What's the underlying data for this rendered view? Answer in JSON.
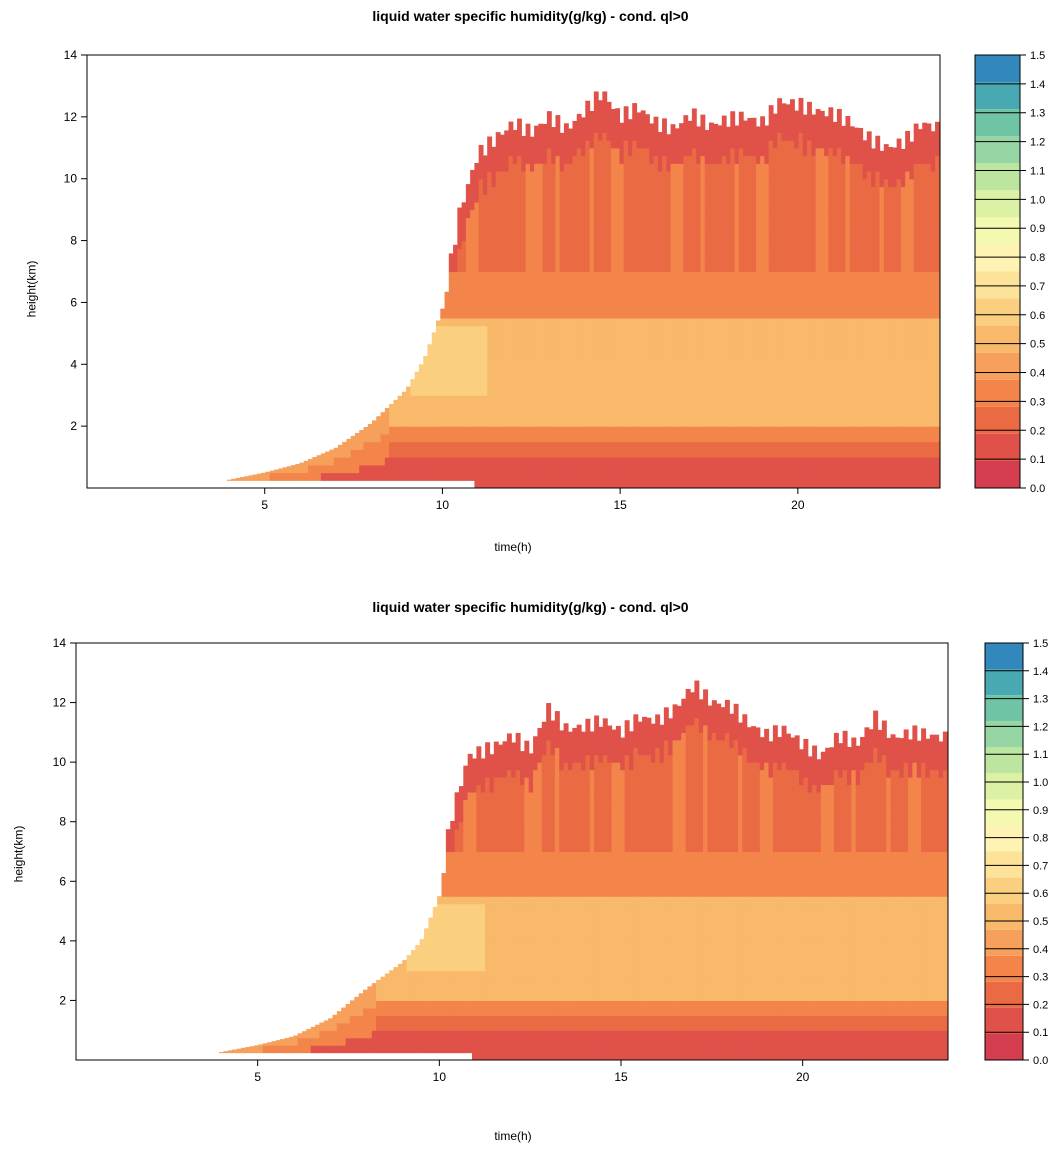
{
  "chart_data": [
    {
      "type": "heatmap",
      "title": "liquid water specific humidity(g/kg) - cond. ql>0",
      "xlabel": "time(h)",
      "ylabel": "height(km)",
      "xlim": [
        0,
        24
      ],
      "ylim": [
        0,
        14
      ],
      "x_ticks": [
        5,
        10,
        15,
        20
      ],
      "y_ticks": [
        2,
        4,
        6,
        8,
        10,
        12,
        14
      ],
      "colorbar": {
        "levels": [
          "0.0",
          "0.1",
          "0.2",
          "0.3",
          "0.4",
          "0.5",
          "0.6",
          "0.7",
          "0.8",
          "0.9",
          "1.0",
          "1.1",
          "1.2",
          "1.3",
          "1.4",
          "1.5"
        ],
        "colors": [
          "#d53e4f",
          "#e05249",
          "#ea6a43",
          "#f3854a",
          "#f6a05b",
          "#f8b96b",
          "#fbcf80",
          "#fde39a",
          "#fff3b4",
          "#f4f9b0",
          "#dcf1a3",
          "#bce5a0",
          "#96d5a4",
          "#6fc4a5",
          "#48a9b2",
          "#3288bd"
        ]
      },
      "cloud_top_km": {
        "x": [
          3.7,
          5,
          6,
          7,
          8,
          9,
          9.5,
          10,
          10.5,
          11,
          11.5,
          12,
          12.5,
          13,
          13.5,
          14,
          14.5,
          15,
          15.5,
          16,
          16.5,
          17,
          17.5,
          18,
          18.5,
          19,
          19.5,
          20,
          20.5,
          21,
          21.5,
          22,
          22.5,
          23,
          23.5,
          24
        ],
        "y": [
          0.2,
          0.5,
          0.8,
          1.3,
          2.1,
          3.2,
          4.2,
          5.8,
          9.0,
          10.8,
          11.3,
          11.8,
          11.5,
          12.0,
          11.6,
          12.2,
          12.8,
          12.0,
          12.3,
          11.8,
          11.6,
          12.1,
          11.7,
          11.9,
          12.0,
          11.8,
          12.5,
          12.4,
          12.2,
          12.1,
          11.8,
          11.3,
          11.0,
          11.2,
          11.8,
          11.6
        ]
      }
    },
    {
      "type": "heatmap",
      "title": "liquid water specific humidity(g/kg) - cond. ql>0",
      "xlabel": "time(h)",
      "ylabel": "height(km)",
      "xlim": [
        0,
        24
      ],
      "ylim": [
        0,
        14
      ],
      "x_ticks": [
        5,
        10,
        15,
        20
      ],
      "y_ticks": [
        2,
        4,
        6,
        8,
        10,
        12,
        14
      ],
      "colorbar": {
        "levels": [
          "0.0",
          "0.1",
          "0.2",
          "0.3",
          "0.4",
          "0.5",
          "0.6",
          "0.7",
          "0.8",
          "0.9",
          "1.0",
          "1.1",
          "1.2",
          "1.3",
          "1.4",
          "1.5"
        ],
        "colors": [
          "#d53e4f",
          "#e05249",
          "#ea6a43",
          "#f3854a",
          "#f6a05b",
          "#f8b96b",
          "#fbcf80",
          "#fde39a",
          "#fff3b4",
          "#f4f9b0",
          "#dcf1a3",
          "#bce5a0",
          "#96d5a4",
          "#6fc4a5",
          "#48a9b2",
          "#3288bd"
        ]
      },
      "cloud_top_km": {
        "x": [
          3.7,
          5,
          6,
          7,
          8,
          9,
          9.5,
          10,
          10.3,
          10.8,
          11.5,
          12,
          12.5,
          13,
          13.5,
          14,
          14.5,
          15,
          15.5,
          16,
          16.5,
          17,
          17.5,
          18,
          18.5,
          19,
          19.5,
          20,
          20.5,
          21,
          21.5,
          22,
          22.5,
          23,
          23.5,
          24
        ],
        "y": [
          0.2,
          0.5,
          0.8,
          1.4,
          2.4,
          3.3,
          4.0,
          5.5,
          8.0,
          10.2,
          10.5,
          10.9,
          10.4,
          11.8,
          11.1,
          11.2,
          11.4,
          11.0,
          11.5,
          11.4,
          11.8,
          12.6,
          12.0,
          11.9,
          11.3,
          10.9,
          11.1,
          10.6,
          10.2,
          10.9,
          10.6,
          11.5,
          10.8,
          11.0,
          10.9,
          10.8
        ]
      }
    }
  ]
}
